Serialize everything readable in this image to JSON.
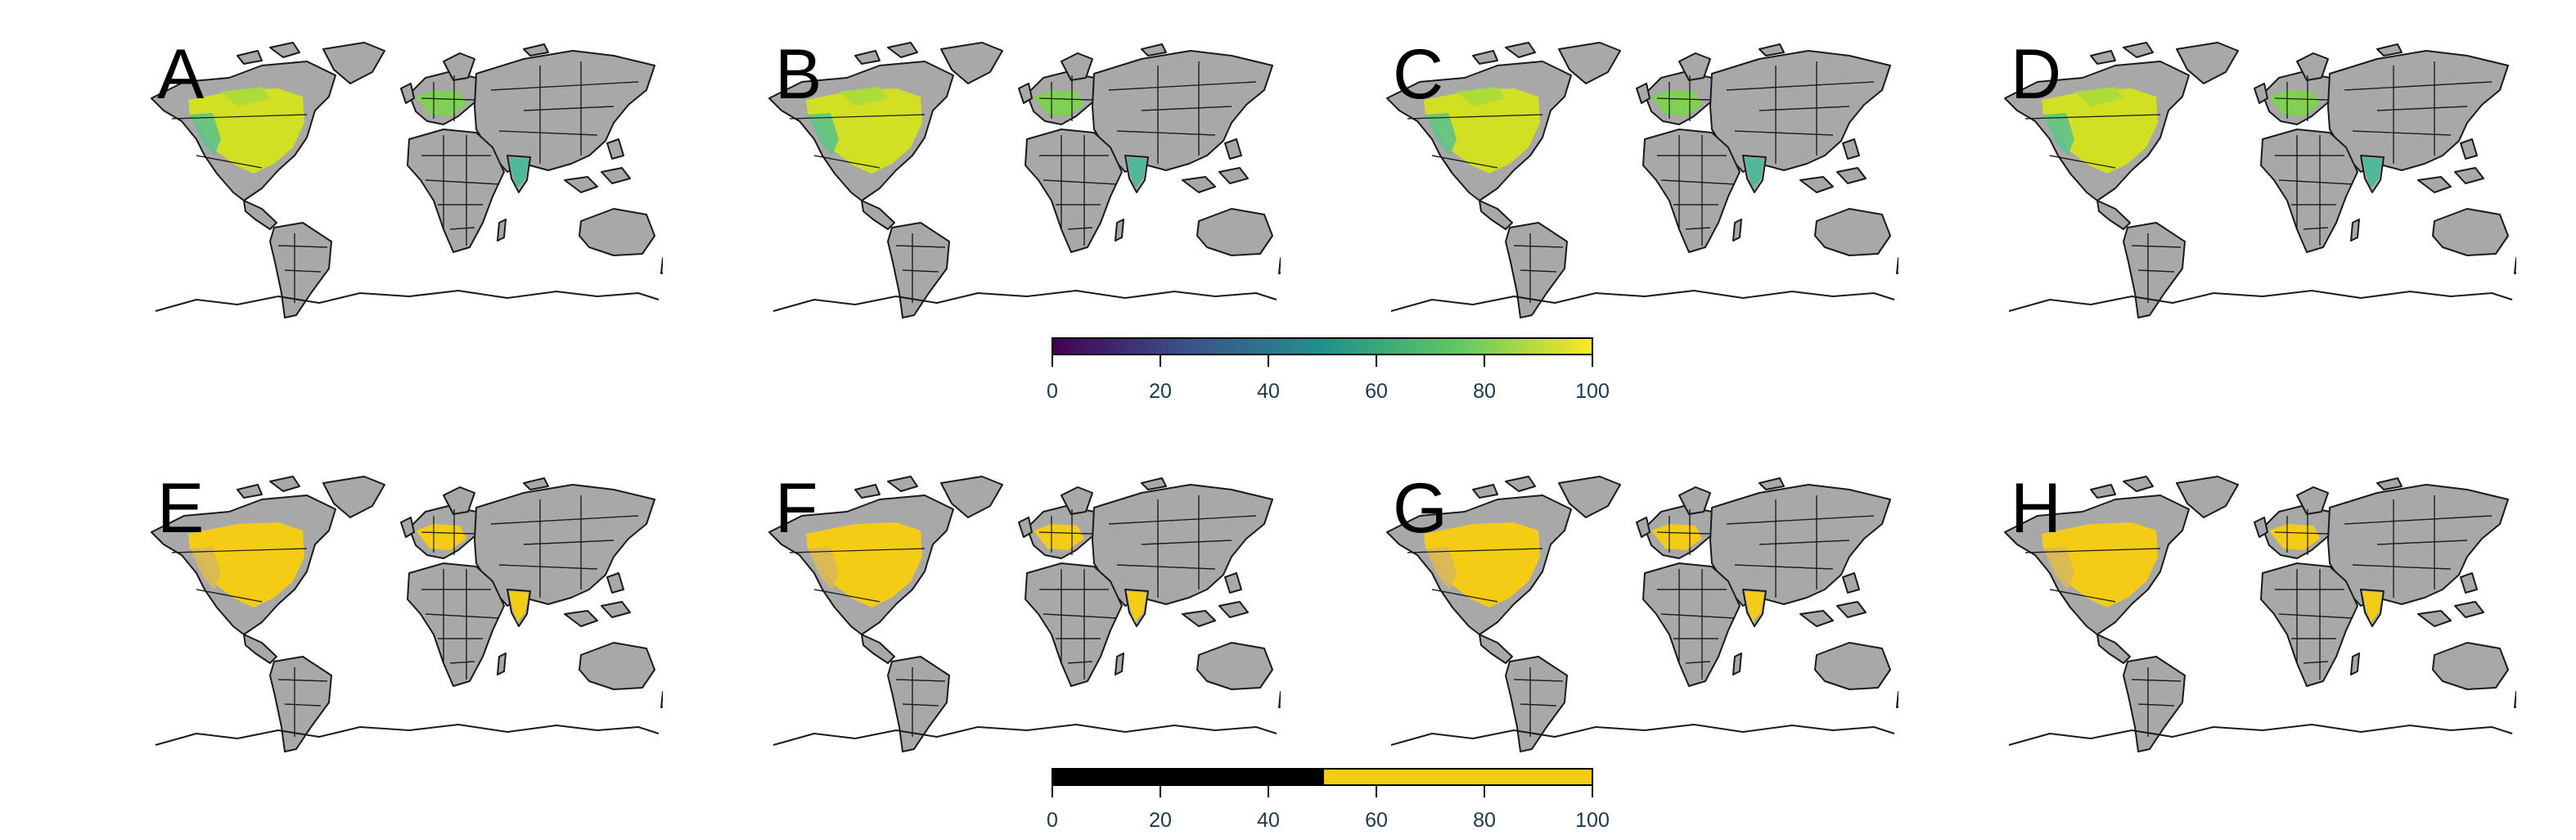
{
  "colors": {
    "land": "#a8a8a8",
    "border": "#1a1a1a",
    "continuous_gradient": [
      "#440154",
      "#3b528b",
      "#21908d",
      "#5dc963",
      "#fde725"
    ],
    "binary_low": "#000000",
    "binary_high": "#f5cc15"
  },
  "panels_top": [
    {
      "letter": "A",
      "mode": "continuous"
    },
    {
      "letter": "B",
      "mode": "continuous"
    },
    {
      "letter": "C",
      "mode": "continuous"
    },
    {
      "letter": "D",
      "mode": "continuous"
    }
  ],
  "panels_bottom": [
    {
      "letter": "E",
      "mode": "binary"
    },
    {
      "letter": "F",
      "mode": "binary"
    },
    {
      "letter": "G",
      "mode": "binary"
    },
    {
      "letter": "H",
      "mode": "binary"
    }
  ],
  "legend_continuous": {
    "ticks": [
      "0",
      "20",
      "40",
      "60",
      "80",
      "100"
    ],
    "min": 0,
    "max": 100
  },
  "legend_binary": {
    "ticks": [
      "0",
      "20",
      "40",
      "60",
      "80",
      "100"
    ],
    "min": 0,
    "max": 100,
    "threshold": 50
  }
}
